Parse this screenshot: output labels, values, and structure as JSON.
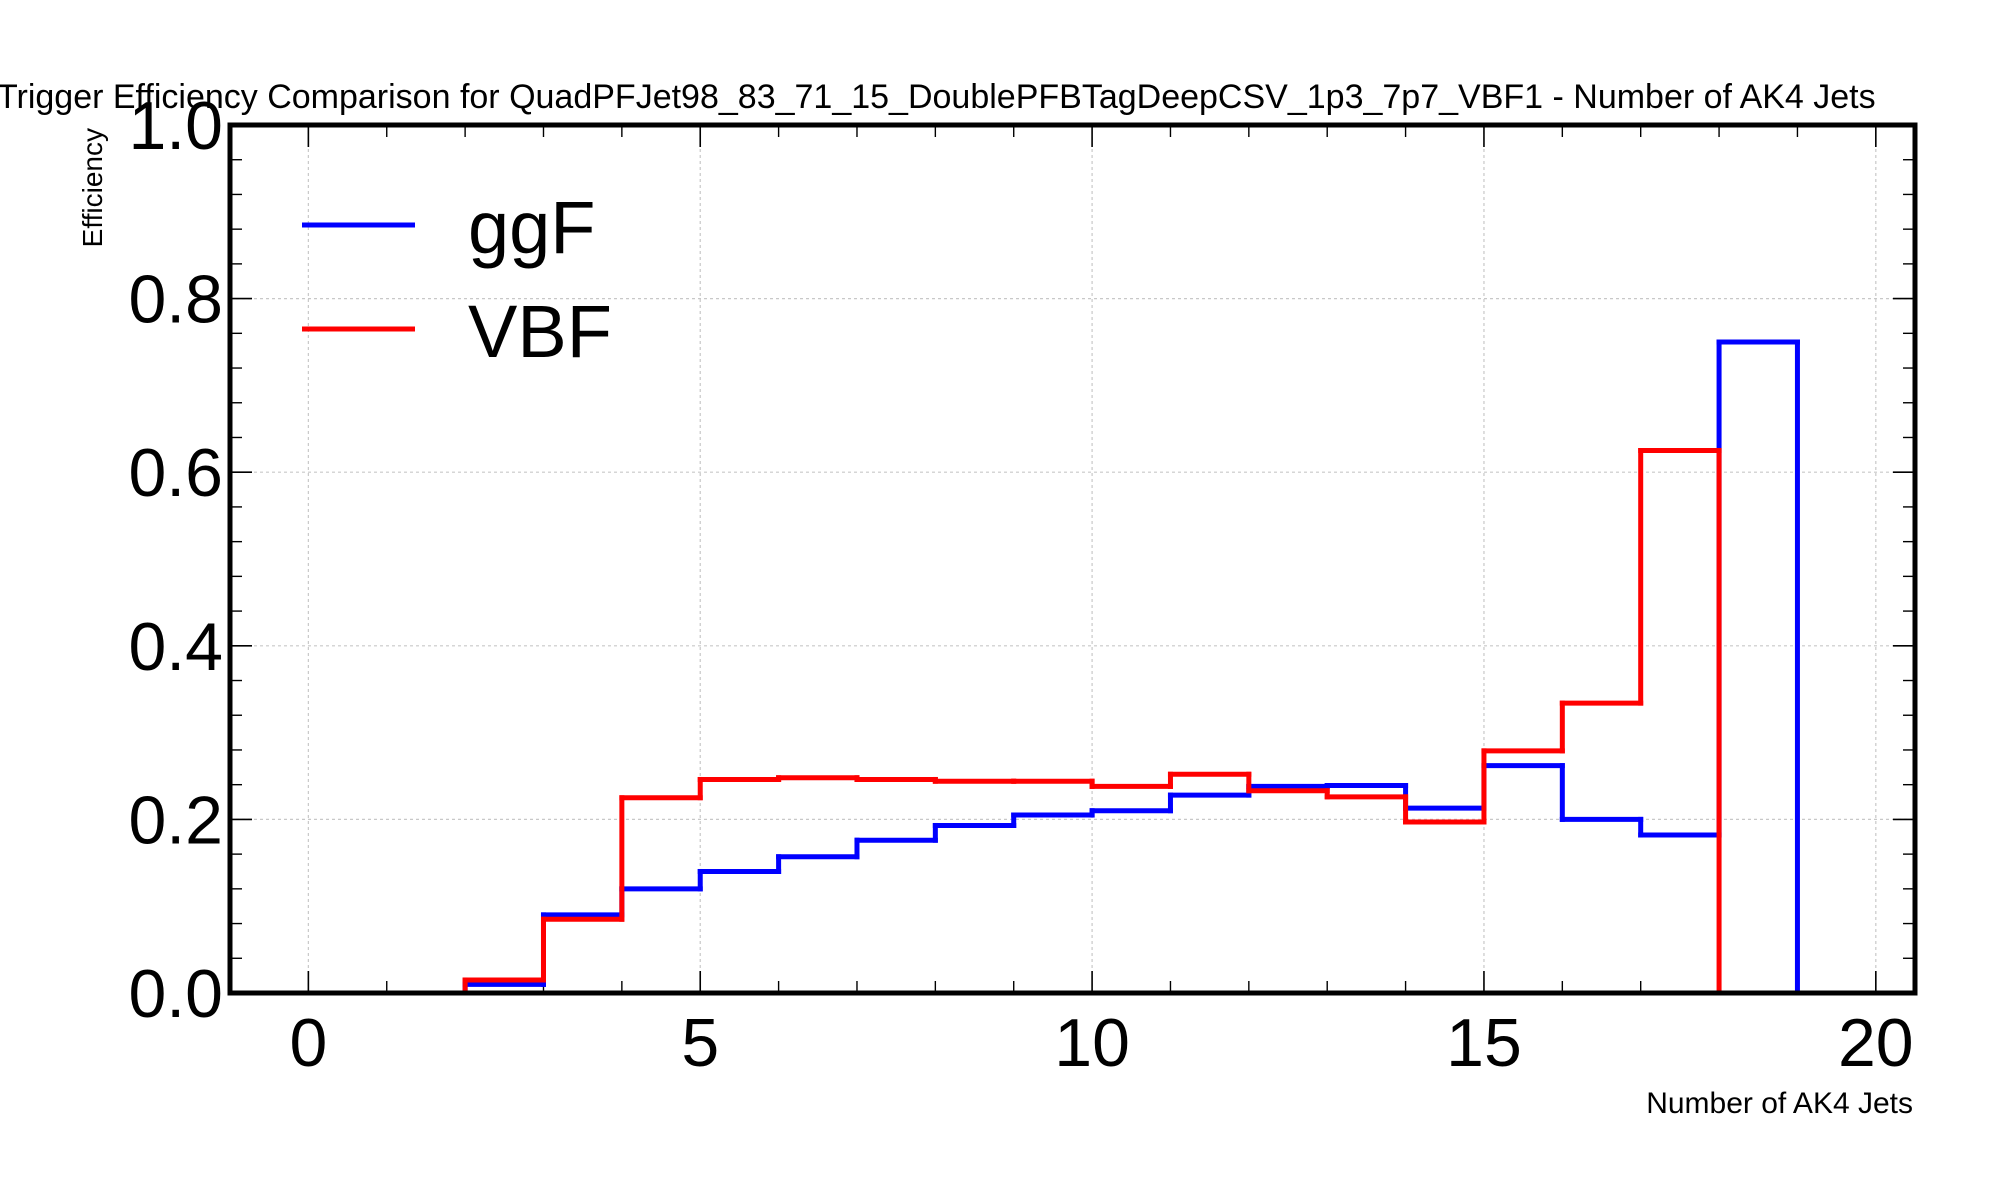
{
  "chart_data": {
    "type": "line",
    "drawstyle": "step-histogram",
    "title": "Trigger Efficiency Comparison for QuadPFJet98_83_71_15_DoublePFBTagDeepCSV_1p3_7p7_VBF1 - Number of AK4 Jets",
    "xlabel": "Number of AK4 Jets",
    "ylabel": "Efficiency",
    "xlim": [
      -1,
      20.5
    ],
    "ylim": [
      0,
      1.0
    ],
    "xticks": [
      0,
      5,
      10,
      15,
      20
    ],
    "yticks": [
      0.0,
      0.2,
      0.4,
      0.6,
      0.8,
      1.0
    ],
    "xtick_labels": [
      "0",
      "5",
      "10",
      "15",
      "20"
    ],
    "ytick_labels": [
      "0.0",
      "0.2",
      "0.4",
      "0.6",
      "0.8",
      "1.0"
    ],
    "grid": true,
    "legend_position": "top-left",
    "bin_edges": [
      0,
      1,
      2,
      3,
      4,
      5,
      6,
      7,
      8,
      9,
      10,
      11,
      12,
      13,
      14,
      15,
      16,
      17,
      18,
      19
    ],
    "series": [
      {
        "name": "ggF",
        "color": "#0000ff",
        "values": [
          0,
          0,
          0.01,
          0.09,
          0.12,
          0.14,
          0.157,
          0.176,
          0.193,
          0.205,
          0.21,
          0.228,
          0.238,
          0.239,
          0.213,
          0.262,
          0.2,
          0.182,
          0.75
        ]
      },
      {
        "name": "VBF",
        "color": "#ff0000",
        "values": [
          0,
          0,
          0.015,
          0.085,
          0.225,
          0.246,
          0.248,
          0.246,
          0.244,
          0.244,
          0.238,
          0.252,
          0.233,
          0.226,
          0.197,
          0.279,
          0.334,
          0.625,
          0
        ]
      }
    ]
  }
}
